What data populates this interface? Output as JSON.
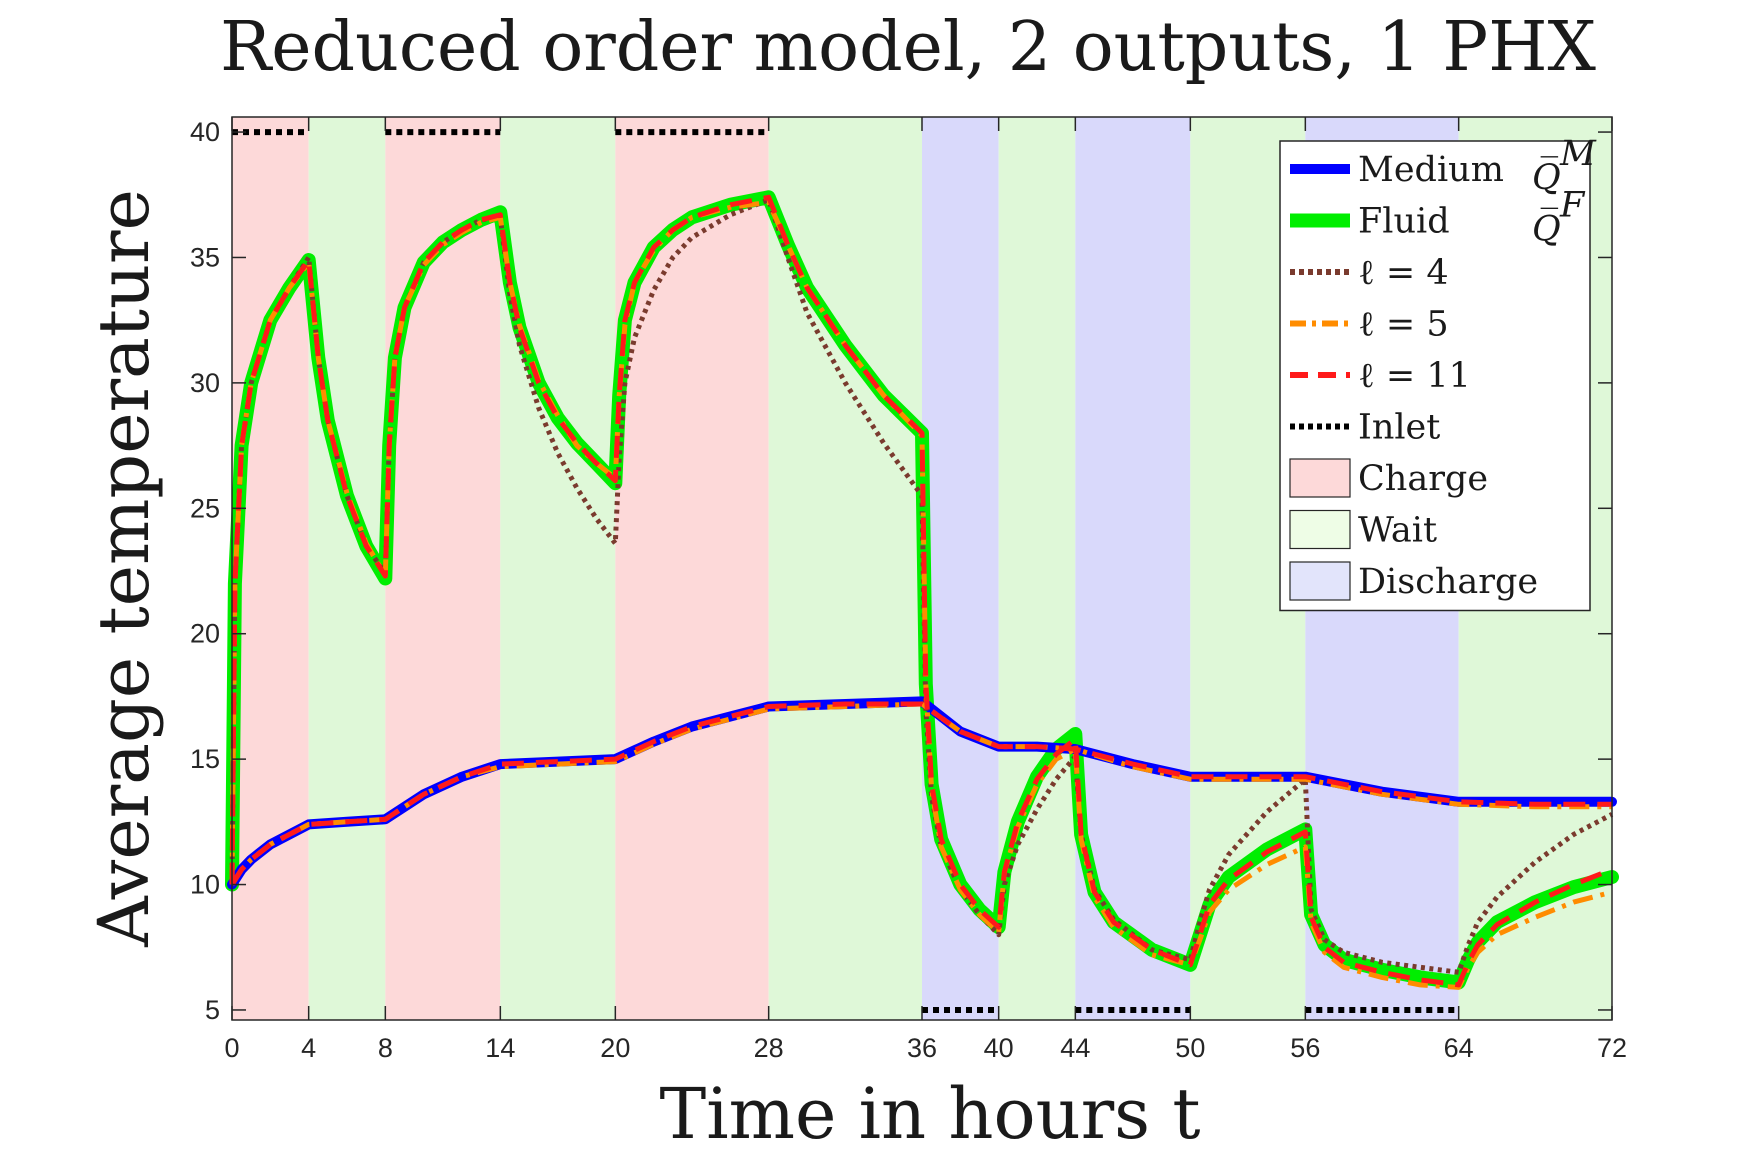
{
  "chart_data": {
    "type": "line",
    "title": "Reduced order model, 2 outputs, 1 PHX",
    "xlabel": "Time in hours t",
    "ylabel": "Average temperature",
    "xlim": [
      0,
      72
    ],
    "ylim": [
      4.6,
      40.6
    ],
    "xticks": [
      0,
      4,
      8,
      14,
      20,
      28,
      36,
      40,
      44,
      50,
      56,
      64,
      72
    ],
    "yticks": [
      5,
      10,
      15,
      20,
      25,
      30,
      35,
      40
    ],
    "grid": false,
    "legend_position": "top-right",
    "phases": [
      {
        "name": "Charge",
        "start": 0,
        "end": 4
      },
      {
        "name": "Wait",
        "start": 4,
        "end": 8
      },
      {
        "name": "Charge",
        "start": 8,
        "end": 14
      },
      {
        "name": "Wait",
        "start": 14,
        "end": 20
      },
      {
        "name": "Charge",
        "start": 20,
        "end": 28
      },
      {
        "name": "Wait",
        "start": 28,
        "end": 36
      },
      {
        "name": "Discharge",
        "start": 36,
        "end": 40
      },
      {
        "name": "Wait",
        "start": 40,
        "end": 44
      },
      {
        "name": "Discharge",
        "start": 44,
        "end": 50
      },
      {
        "name": "Wait",
        "start": 50,
        "end": 56
      },
      {
        "name": "Discharge",
        "start": 56,
        "end": 64
      },
      {
        "name": "Wait",
        "start": 64,
        "end": 72
      }
    ],
    "phase_colors": {
      "Charge": "#fdd9d9",
      "Wait": "#dff8d8",
      "Discharge": "#d9d9fb"
    },
    "series": [
      {
        "name": "Medium",
        "symbol": "Q̅^M",
        "color": "#0000ff",
        "style": "solid",
        "x": [
          0,
          0.5,
          1,
          2,
          3,
          4,
          6,
          8,
          10,
          12,
          14,
          17,
          20,
          22,
          24,
          26,
          28,
          32,
          36,
          38,
          40,
          42,
          44,
          47,
          50,
          53,
          56,
          60,
          64,
          68,
          72
        ],
        "y": [
          10.0,
          10.6,
          11.0,
          11.6,
          12.0,
          12.4,
          12.5,
          12.6,
          13.6,
          14.3,
          14.8,
          14.9,
          15.0,
          15.7,
          16.3,
          16.7,
          17.1,
          17.2,
          17.3,
          16.1,
          15.5,
          15.5,
          15.4,
          14.8,
          14.3,
          14.3,
          14.3,
          13.7,
          13.3,
          13.3,
          13.3
        ]
      },
      {
        "name": "Fluid",
        "symbol": "Q̅^F",
        "color": "#00ee00",
        "style": "solid",
        "x": [
          0,
          0.15,
          0.5,
          1,
          2,
          3,
          4,
          4.5,
          5,
          6,
          7,
          8,
          8.2,
          8.5,
          9,
          10,
          11,
          12,
          13,
          14,
          14.5,
          15,
          16,
          17,
          18,
          19,
          20,
          20.2,
          20.5,
          21,
          22,
          23,
          24,
          26,
          28,
          29,
          30,
          32,
          34,
          36,
          36.2,
          36.5,
          37,
          38,
          39,
          40,
          40.3,
          41,
          42,
          43,
          44,
          44.3,
          45,
          46,
          48,
          50,
          50.5,
          51,
          52,
          54,
          56,
          56.3,
          57,
          58,
          60,
          62,
          64,
          64.5,
          65,
          66,
          68,
          70,
          72
        ],
        "y": [
          10.0,
          22.0,
          27.5,
          30.0,
          32.5,
          33.8,
          34.9,
          31.0,
          28.5,
          25.5,
          23.5,
          22.2,
          27.5,
          31.0,
          33.0,
          34.8,
          35.6,
          36.1,
          36.5,
          36.8,
          34.0,
          32.2,
          30.0,
          28.6,
          27.6,
          26.8,
          26.0,
          29.5,
          32.5,
          34.0,
          35.4,
          36.1,
          36.6,
          37.1,
          37.4,
          35.5,
          33.8,
          31.5,
          29.5,
          28.0,
          18.0,
          14.0,
          11.8,
          10.0,
          9.0,
          8.3,
          10.5,
          12.5,
          14.3,
          15.4,
          16.0,
          12.0,
          9.7,
          8.5,
          7.4,
          6.8,
          8.0,
          9.2,
          10.3,
          11.4,
          12.2,
          8.8,
          7.6,
          7.0,
          6.6,
          6.3,
          6.1,
          7.0,
          7.7,
          8.5,
          9.3,
          9.9,
          10.3
        ]
      },
      {
        "name": "ℓ = 4",
        "color": "#7a3b2e",
        "style": "dotted",
        "x": [
          0,
          0.15,
          0.5,
          1,
          2,
          3,
          4,
          4.5,
          5,
          6,
          7,
          8,
          8.2,
          8.5,
          9,
          10,
          11,
          12,
          13,
          14,
          14.5,
          15,
          16,
          17,
          18,
          19,
          20,
          20.2,
          20.5,
          21,
          22,
          23,
          24,
          26,
          28,
          29,
          30,
          32,
          34,
          36,
          36.2,
          36.5,
          37,
          38,
          39,
          40,
          40.3,
          41,
          42,
          43,
          44,
          44.3,
          45,
          46,
          48,
          50,
          50.5,
          51,
          52,
          54,
          56,
          56.3,
          57,
          58,
          60,
          62,
          64,
          64.5,
          65,
          66,
          68,
          70,
          72
        ],
        "y": [
          10.0,
          22.0,
          27.5,
          30.0,
          32.5,
          33.8,
          35.0,
          31.0,
          28.5,
          25.5,
          23.5,
          22.4,
          27.5,
          31.0,
          33.0,
          34.8,
          35.6,
          36.1,
          36.5,
          36.6,
          33.5,
          31.5,
          29.0,
          27.2,
          25.8,
          24.6,
          23.6,
          27.0,
          30.0,
          31.8,
          33.7,
          35.0,
          35.8,
          36.7,
          37.3,
          35.0,
          32.8,
          30.0,
          27.6,
          25.5,
          17.0,
          13.5,
          11.5,
          9.8,
          8.8,
          8.0,
          10.0,
          11.6,
          13.0,
          14.2,
          15.1,
          12.0,
          9.8,
          8.6,
          7.4,
          7.0,
          8.5,
          9.8,
          11.2,
          12.9,
          14.2,
          9.0,
          7.8,
          7.3,
          6.9,
          6.7,
          6.5,
          7.6,
          8.5,
          9.5,
          10.9,
          12.0,
          12.8
        ]
      },
      {
        "name": "ℓ = 5",
        "color": "#ff8c00",
        "style": "dashdot",
        "x": [
          0,
          0.15,
          0.5,
          1,
          2,
          3,
          4,
          4.5,
          5,
          6,
          7,
          8,
          8.2,
          8.5,
          9,
          10,
          11,
          12,
          13,
          14,
          14.5,
          15,
          16,
          17,
          18,
          19,
          20,
          20.2,
          20.5,
          21,
          22,
          23,
          24,
          26,
          28,
          29,
          30,
          32,
          34,
          36,
          36.2,
          36.5,
          37,
          38,
          39,
          40,
          40.3,
          41,
          42,
          43,
          44,
          44.3,
          45,
          46,
          48,
          50,
          50.5,
          51,
          52,
          54,
          56,
          56.3,
          57,
          58,
          60,
          62,
          64,
          64.5,
          65,
          66,
          68,
          70,
          72
        ],
        "y": [
          10.0,
          22.0,
          27.5,
          30.0,
          32.5,
          33.8,
          34.8,
          31.0,
          28.5,
          25.6,
          23.6,
          22.3,
          27.5,
          31.0,
          33.0,
          34.7,
          35.5,
          36.0,
          36.4,
          36.6,
          34.0,
          32.3,
          30.1,
          28.7,
          27.5,
          26.8,
          26.2,
          29.5,
          32.3,
          34.0,
          35.3,
          36.1,
          36.6,
          37.0,
          37.2,
          35.5,
          33.8,
          31.5,
          29.5,
          27.9,
          18.0,
          13.8,
          11.5,
          9.8,
          8.8,
          8.1,
          10.5,
          12.3,
          14.0,
          15.0,
          15.4,
          11.8,
          9.5,
          8.3,
          7.2,
          6.8,
          7.8,
          8.9,
          9.8,
          10.8,
          11.5,
          8.5,
          7.3,
          6.7,
          6.3,
          6.0,
          5.9,
          6.7,
          7.3,
          8.0,
          8.7,
          9.3,
          9.7
        ]
      },
      {
        "name": "ℓ = 11",
        "color": "#ff1a1a",
        "style": "dashed",
        "x": [
          0,
          0.15,
          0.5,
          1,
          2,
          3,
          4,
          4.5,
          5,
          6,
          7,
          8,
          8.2,
          8.5,
          9,
          10,
          11,
          12,
          13,
          14,
          14.5,
          15,
          16,
          17,
          18,
          19,
          20,
          20.2,
          20.5,
          21,
          22,
          23,
          24,
          26,
          28,
          29,
          30,
          32,
          34,
          36,
          36.2,
          36.5,
          37,
          38,
          39,
          40,
          40.3,
          41,
          42,
          43,
          44,
          44.3,
          45,
          46,
          48,
          50,
          50.5,
          51,
          52,
          54,
          56,
          56.3,
          57,
          58,
          60,
          62,
          64,
          64.5,
          65,
          66,
          68,
          70,
          72
        ],
        "y": [
          10.0,
          22.0,
          27.5,
          30.0,
          32.5,
          33.8,
          34.9,
          31.0,
          28.5,
          25.5,
          23.5,
          22.3,
          27.5,
          31.0,
          33.0,
          34.8,
          35.6,
          36.1,
          36.5,
          36.7,
          34.0,
          32.2,
          30.0,
          28.6,
          27.6,
          26.8,
          26.1,
          29.5,
          32.5,
          34.0,
          35.4,
          36.1,
          36.6,
          37.1,
          37.4,
          35.5,
          33.8,
          31.5,
          29.5,
          28.0,
          18.0,
          14.0,
          11.8,
          10.0,
          9.0,
          8.3,
          10.5,
          12.5,
          14.2,
          15.2,
          15.8,
          12.0,
          9.7,
          8.5,
          7.4,
          6.8,
          8.0,
          9.2,
          10.2,
          11.3,
          12.1,
          8.7,
          7.5,
          6.9,
          6.5,
          6.2,
          6.0,
          6.9,
          7.6,
          8.4,
          9.3,
          10.0,
          10.6
        ]
      },
      {
        "name": "Medium ℓ = 5",
        "legend": false,
        "color": "#ff8c00",
        "style": "dashdot",
        "x": [
          0,
          0.5,
          1,
          2,
          3,
          4,
          6,
          8,
          10,
          12,
          14,
          17,
          20,
          22,
          24,
          26,
          28,
          32,
          36,
          38,
          40,
          42,
          44,
          47,
          50,
          53,
          56,
          60,
          64,
          68,
          72
        ],
        "y": [
          10.0,
          10.6,
          11.0,
          11.6,
          12.0,
          12.4,
          12.5,
          12.6,
          13.6,
          14.3,
          14.7,
          14.8,
          14.9,
          15.6,
          16.2,
          16.6,
          17.0,
          17.1,
          17.2,
          16.1,
          15.5,
          15.5,
          15.4,
          14.7,
          14.2,
          14.2,
          14.2,
          13.6,
          13.2,
          13.1,
          13.1
        ]
      },
      {
        "name": "Medium ℓ = 11",
        "legend": false,
        "color": "#ff1a1a",
        "style": "dashed",
        "x": [
          0,
          0.5,
          1,
          2,
          3,
          4,
          6,
          8,
          10,
          12,
          14,
          17,
          20,
          22,
          24,
          26,
          28,
          32,
          36,
          38,
          40,
          42,
          44,
          47,
          50,
          53,
          56,
          60,
          64,
          68,
          72
        ],
        "y": [
          10.0,
          10.6,
          11.0,
          11.6,
          12.0,
          12.4,
          12.5,
          12.6,
          13.6,
          14.3,
          14.8,
          14.9,
          15.0,
          15.7,
          16.3,
          16.7,
          17.1,
          17.2,
          17.2,
          16.1,
          15.5,
          15.5,
          15.4,
          14.8,
          14.3,
          14.3,
          14.3,
          13.7,
          13.3,
          13.2,
          13.2
        ]
      },
      {
        "name": "Inlet",
        "color": "#000000",
        "style": "dotted",
        "segments": [
          {
            "x": [
              0,
              4
            ],
            "y": [
              40,
              40
            ]
          },
          {
            "x": [
              8,
              14
            ],
            "y": [
              40,
              40
            ]
          },
          {
            "x": [
              20,
              28
            ],
            "y": [
              40,
              40
            ]
          },
          {
            "x": [
              36,
              40
            ],
            "y": [
              5,
              5
            ]
          },
          {
            "x": [
              44,
              50
            ],
            "y": [
              5,
              5
            ]
          },
          {
            "x": [
              56,
              64
            ],
            "y": [
              5,
              5
            ]
          }
        ]
      }
    ],
    "legend": [
      {
        "label": "Medium",
        "symbol": "Q̅",
        "sup": "M",
        "color": "#0000ff",
        "kind": "line",
        "style": "solid"
      },
      {
        "label": "Fluid",
        "symbol": "Q̅",
        "sup": "F",
        "color": "#00ee00",
        "kind": "line",
        "style": "solid"
      },
      {
        "label": "ℓ = 4",
        "color": "#7a3b2e",
        "kind": "line",
        "style": "dotted"
      },
      {
        "label": "ℓ = 5",
        "color": "#ff8c00",
        "kind": "line",
        "style": "dashdot"
      },
      {
        "label": "ℓ = 11",
        "color": "#ff1a1a",
        "kind": "line",
        "style": "dashed"
      },
      {
        "label": "Inlet",
        "color": "#000000",
        "kind": "line",
        "style": "dotted"
      },
      {
        "label": "Charge",
        "color": "#fdd9d9",
        "kind": "patch"
      },
      {
        "label": "Wait",
        "color": "#eefde6",
        "kind": "patch"
      },
      {
        "label": "Discharge",
        "color": "#e2e4fb",
        "kind": "patch"
      }
    ]
  }
}
